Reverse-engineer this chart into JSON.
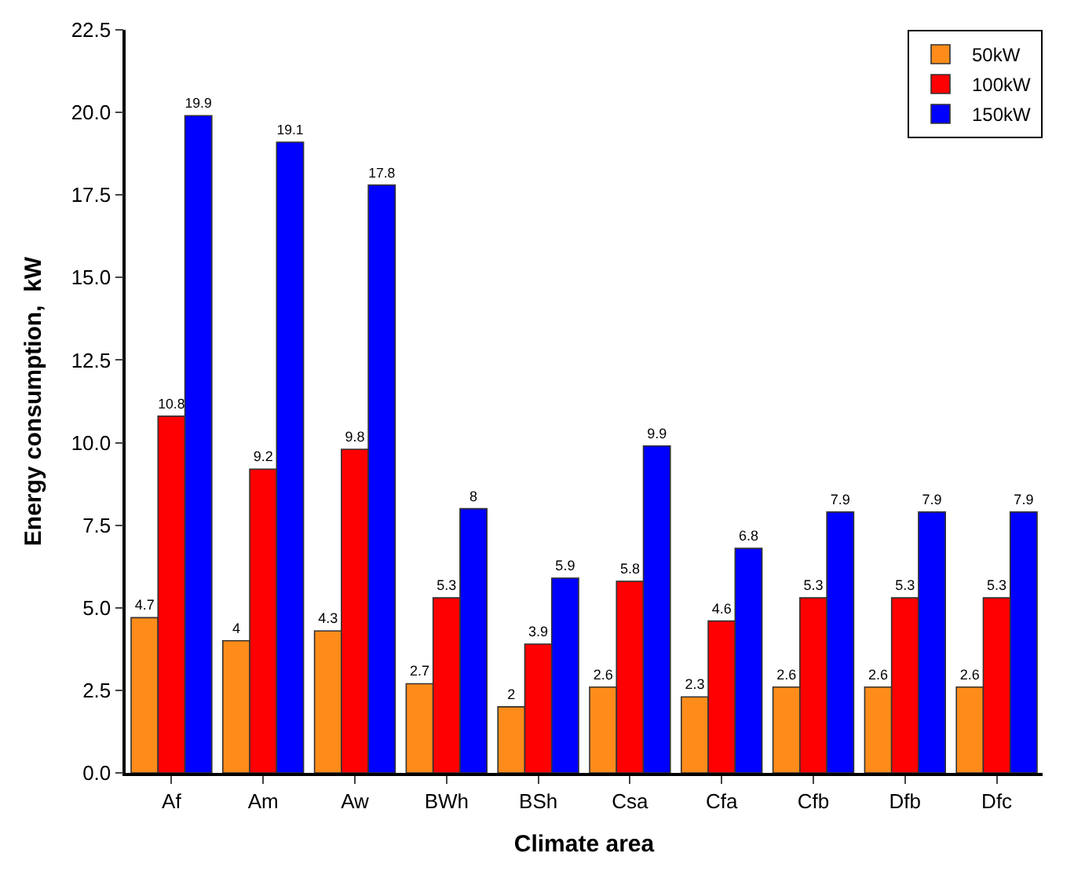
{
  "chart_data": {
    "type": "bar",
    "xlabel": "Climate area",
    "ylabel": "Energy consumption,  kW",
    "categories": [
      "Af",
      "Am",
      "Aw",
      "BWh",
      "BSh",
      "Csa",
      "Cfa",
      "Cfb",
      "Dfb",
      "Dfc"
    ],
    "series": [
      {
        "name": "50kW",
        "color": "#ff8c1a",
        "values": [
          4.7,
          4,
          4.3,
          2.7,
          2,
          2.6,
          2.3,
          2.6,
          2.6,
          2.6
        ]
      },
      {
        "name": "100kW",
        "color": "#ff0000",
        "values": [
          10.8,
          9.2,
          9.8,
          5.3,
          3.9,
          5.8,
          4.6,
          5.3,
          5.3,
          5.3
        ]
      },
      {
        "name": "150kW",
        "color": "#0000ff",
        "values": [
          19.9,
          19.1,
          17.8,
          8,
          5.9,
          9.9,
          6.8,
          7.9,
          7.9,
          7.9
        ]
      }
    ],
    "ylim": [
      0,
      22.5
    ],
    "yticks": [
      {
        "value": 0,
        "label": "0.0"
      },
      {
        "value": 2.5,
        "label": "2.5"
      },
      {
        "value": 5,
        "label": "5.0"
      },
      {
        "value": 7.5,
        "label": "7.5"
      },
      {
        "value": 10,
        "label": "10.0"
      },
      {
        "value": 12.5,
        "label": "12.5"
      },
      {
        "value": 15,
        "label": "15.0"
      },
      {
        "value": 17.5,
        "label": "17.5"
      },
      {
        "value": 20,
        "label": "20.0"
      },
      {
        "value": 22.5,
        "label": "22.5"
      }
    ],
    "data_labels": true,
    "legend": "top right"
  }
}
